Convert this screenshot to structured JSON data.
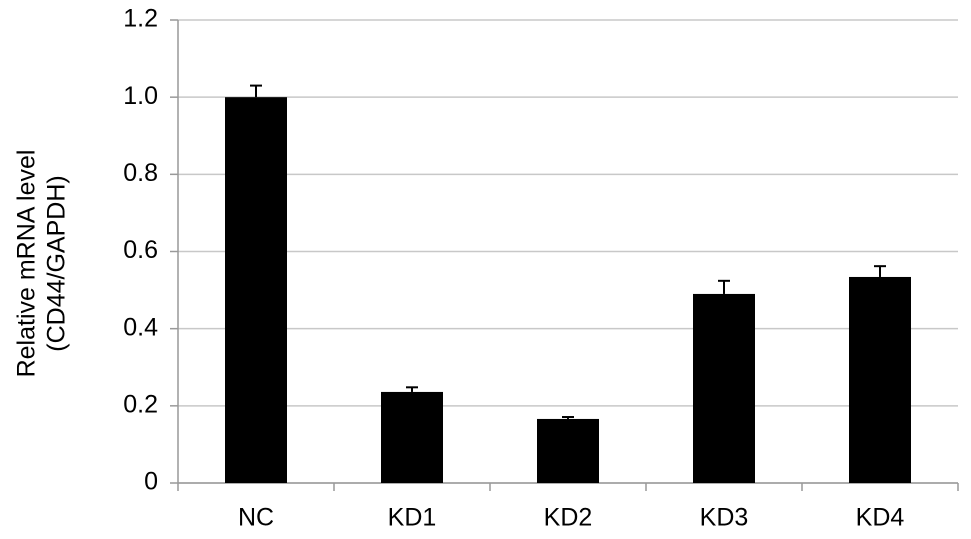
{
  "chart_data": {
    "type": "bar",
    "ylabel": [
      "Relative mRNA level",
      "(CD44/GAPDH)"
    ],
    "categories": [
      "NC",
      "KD1",
      "KD2",
      "KD3",
      "KD4"
    ],
    "values": [
      1.0,
      0.236,
      0.166,
      0.49,
      0.534
    ],
    "errors": [
      0.03,
      0.012,
      0.005,
      0.034,
      0.028
    ],
    "color": "#000000",
    "ylim": [
      0,
      1.2
    ],
    "yticks": [
      0,
      0.2,
      0.4,
      0.6,
      0.8,
      {
        "value": 1,
        "label": "1.0"
      },
      1.2
    ],
    "grid": true
  }
}
